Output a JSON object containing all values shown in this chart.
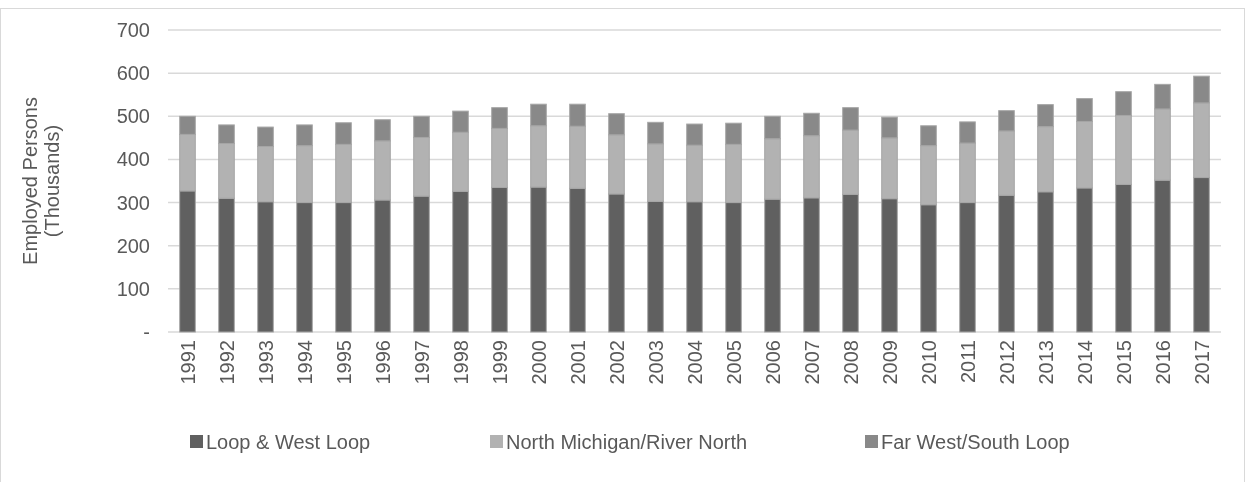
{
  "chart_data": {
    "type": "bar",
    "stacked": true,
    "ylabel": "Employed Persons\n(Thousands)",
    "categories": [
      "1991",
      "1992",
      "1993",
      "1994",
      "1995",
      "1996",
      "1997",
      "1998",
      "1999",
      "2000",
      "2001",
      "2002",
      "2003",
      "2004",
      "2005",
      "2006",
      "2007",
      "2008",
      "2009",
      "2010",
      "2011",
      "2012",
      "2013",
      "2014",
      "2015",
      "2016",
      "2017"
    ],
    "series": [
      {
        "name": "Loop & West Loop",
        "color": "#606060",
        "values": [
          327,
          310,
          302,
          300,
          300,
          306,
          315,
          326,
          335,
          336,
          333,
          320,
          303,
          302,
          300,
          308,
          311,
          319,
          309,
          295,
          300,
          317,
          325,
          334,
          342,
          352,
          358
        ]
      },
      {
        "name": "North Michigan/River North",
        "color": "#b2b2b2",
        "values": [
          131,
          127,
          128,
          132,
          135,
          137,
          136,
          137,
          137,
          142,
          144,
          137,
          133,
          131,
          135,
          140,
          144,
          149,
          141,
          137,
          138,
          149,
          151,
          154,
          160,
          165,
          173
        ]
      },
      {
        "name": "Far West/South Loop",
        "color": "#898989",
        "values": [
          42,
          43,
          45,
          48,
          50,
          49,
          49,
          49,
          48,
          50,
          51,
          49,
          50,
          49,
          49,
          52,
          52,
          52,
          48,
          46,
          49,
          47,
          51,
          53,
          55,
          57,
          62
        ]
      }
    ],
    "ylim": [
      0,
      700
    ],
    "yticks": [
      {
        "value": 0,
        "label": "-"
      },
      100,
      200,
      300,
      400,
      500,
      600,
      700
    ],
    "grid": "y",
    "legend": "bottom"
  }
}
